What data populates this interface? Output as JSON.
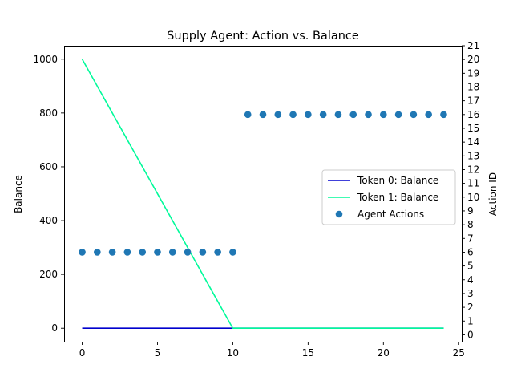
{
  "chart_data": {
    "type": "line",
    "title": "Supply Agent: Action vs. Balance",
    "xlabel": "",
    "ylabel": "Balance",
    "y2label": "Action ID",
    "xlim": [
      -1.2,
      25.2
    ],
    "ylim": [
      -50,
      1050
    ],
    "y2lim": [
      -0.5,
      21
    ],
    "xticks": [
      0,
      5,
      10,
      15,
      20,
      25
    ],
    "yticks": [
      0,
      200,
      400,
      600,
      800,
      1000
    ],
    "y2ticks": [
      0,
      1,
      2,
      3,
      4,
      5,
      6,
      7,
      8,
      9,
      10,
      11,
      12,
      13,
      14,
      15,
      16,
      17,
      18,
      19,
      20,
      21
    ],
    "grid": false,
    "legend_position": "center-right",
    "series": [
      {
        "name": "Token 0: Balance",
        "kind": "line",
        "axis": "left",
        "color": "#0000cd",
        "x": [
          0,
          10,
          24
        ],
        "y": [
          0,
          0,
          0
        ]
      },
      {
        "name": "Token 1: Balance",
        "kind": "line",
        "axis": "left",
        "color": "#00fa9a",
        "x": [
          0,
          10,
          24
        ],
        "y": [
          1000,
          0,
          0
        ]
      },
      {
        "name": "Agent Actions",
        "kind": "scatter",
        "axis": "right",
        "color": "#1f77b4",
        "x": [
          0,
          1,
          2,
          3,
          4,
          5,
          6,
          7,
          8,
          9,
          10,
          11,
          12,
          13,
          14,
          15,
          16,
          17,
          18,
          19,
          20,
          21,
          22,
          23,
          24
        ],
        "y": [
          6,
          6,
          6,
          6,
          6,
          6,
          6,
          6,
          6,
          6,
          6,
          16,
          16,
          16,
          16,
          16,
          16,
          16,
          16,
          16,
          16,
          16,
          16,
          16,
          16
        ]
      }
    ]
  }
}
